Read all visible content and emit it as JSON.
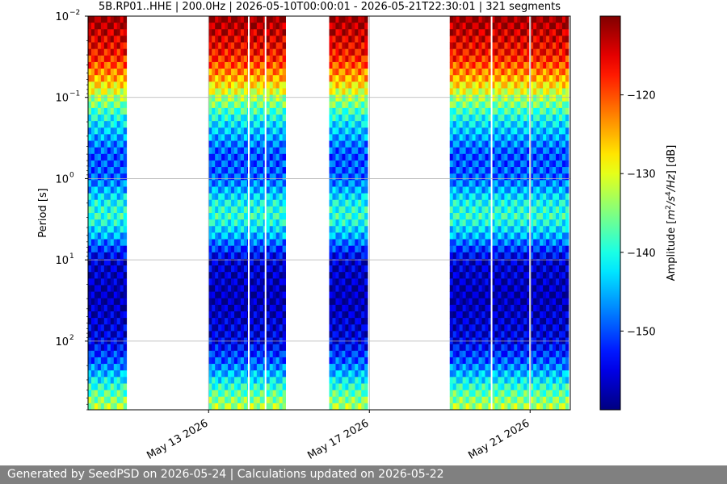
{
  "chart_data": {
    "type": "heatmap",
    "title": "5B.RP01..HHE | 200.0Hz | 2026-05-10T00:00:01 - 2026-05-21T22:30:01 | 321 segments",
    "ylabel": "Period [s]",
    "y_scale": "log",
    "y_inverted": true,
    "ylim": [
      0.01,
      700
    ],
    "y_ticks": [
      {
        "value": 0.01,
        "base": "10",
        "exp": "−2"
      },
      {
        "value": 0.1,
        "base": "10",
        "exp": "−1"
      },
      {
        "value": 1,
        "base": "10",
        "exp": "0"
      },
      {
        "value": 10,
        "base": "10",
        "exp": "1"
      },
      {
        "value": 100,
        "base": "10",
        "exp": "2"
      }
    ],
    "xlim": [
      "2026-05-10",
      "2026-05-22T00:00"
    ],
    "x_ticks": [
      {
        "date": "2026-05-13",
        "label": "May 13 2026"
      },
      {
        "date": "2026-05-17",
        "label": "May 17 2026"
      },
      {
        "date": "2026-05-21",
        "label": "May 21 2026"
      }
    ],
    "grid": true,
    "data_segments": [
      {
        "start": "2026-05-10T00:00",
        "end": "2026-05-10T23:00"
      },
      {
        "start": "2026-05-13T00:00",
        "end": "2026-05-14T22:00"
      },
      {
        "start": "2026-05-16T00:00",
        "end": "2026-05-16T23:00"
      },
      {
        "start": "2026-05-19T00:00",
        "end": "2026-05-21T23:00"
      }
    ],
    "gaps": [
      "2026-05-14T00:00",
      "2026-05-14T10:00",
      "2026-05-17T00:00",
      "2026-05-20T01:00",
      "2026-05-21T00:00"
    ],
    "amplitude_profile": [
      {
        "period": 0.01,
        "db": -110
      },
      {
        "period": 0.015,
        "db": -113
      },
      {
        "period": 0.03,
        "db": -117
      },
      {
        "period": 0.06,
        "db": -125
      },
      {
        "period": 0.1,
        "db": -133
      },
      {
        "period": 0.2,
        "db": -142
      },
      {
        "period": 0.5,
        "db": -150
      },
      {
        "period": 1,
        "db": -149
      },
      {
        "period": 2,
        "db": -141
      },
      {
        "period": 3,
        "db": -139
      },
      {
        "period": 5,
        "db": -145
      },
      {
        "period": 10,
        "db": -156
      },
      {
        "period": 30,
        "db": -158
      },
      {
        "period": 100,
        "db": -155
      },
      {
        "period": 200,
        "db": -148
      },
      {
        "period": 400,
        "db": -138
      },
      {
        "period": 700,
        "db": -132
      }
    ],
    "colorbar": {
      "label": "Amplitude [m²/s⁴/Hz] [dB]",
      "label_base": "Amplitude [",
      "label_m": "m",
      "label_sup2": "2",
      "label_mid": "/s",
      "label_sup4": "4",
      "label_hz": "/Hz",
      "label_end": "] [dB]",
      "colormap": "jet",
      "range": [
        -160,
        -110
      ],
      "ticks": [
        {
          "value": -120,
          "label": "−120"
        },
        {
          "value": -130,
          "label": "−130"
        },
        {
          "value": -140,
          "label": "−140"
        },
        {
          "value": -150,
          "label": "−150"
        }
      ]
    }
  },
  "footer": {
    "text": "Generated by SeedPSD on 2026-05-24 | Calculations updated on 2026-05-22"
  }
}
